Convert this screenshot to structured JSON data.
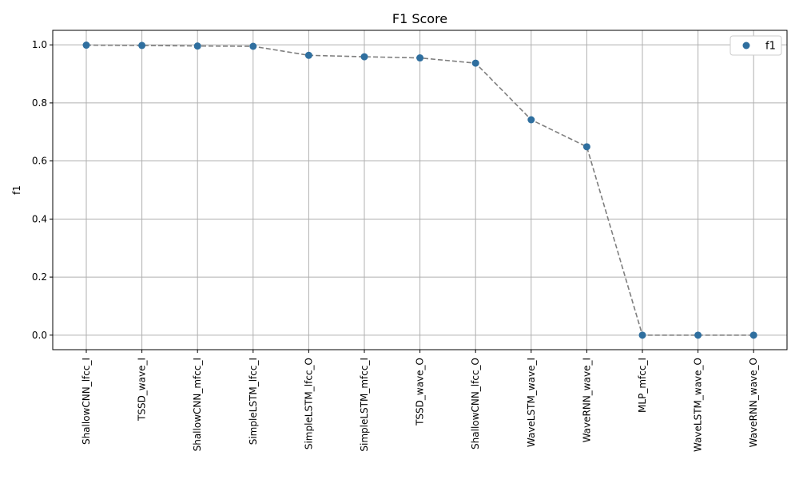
{
  "chart_data": {
    "type": "scatter",
    "title": "F1 Score",
    "xlabel": "",
    "ylabel": "f1",
    "categories": [
      "ShallowCNN_lfcc_I",
      "TSSD_wave_I",
      "ShallowCNN_mfcc_I",
      "SimpleLSTM_lfcc_I",
      "SimpleLSTM_lfcc_O",
      "SimpleLSTM_mfcc_I",
      "TSSD_wave_O",
      "ShallowCNN_lfcc_O",
      "WaveLSTM_wave_I",
      "WaveRNN_wave_I",
      "MLP_mfcc_I",
      "WaveLSTM_wave_O",
      "WaveRNN_wave_O"
    ],
    "series": [
      {
        "name": "f1",
        "values": [
          0.999,
          0.998,
          0.996,
          0.995,
          0.964,
          0.959,
          0.955,
          0.937,
          0.742,
          0.649,
          0.0,
          0.0,
          0.0
        ]
      }
    ],
    "yticks": [
      "0.0",
      "0.2",
      "0.4",
      "0.6",
      "0.8",
      "1.0"
    ],
    "ylim": [
      -0.05,
      1.05
    ],
    "grid": true,
    "connecting_line": "dashed",
    "legend_position": "top-right",
    "colors": {
      "marker": "#2f6f9f",
      "line": "#7f7f7f",
      "grid": "#b0b0b0"
    }
  }
}
